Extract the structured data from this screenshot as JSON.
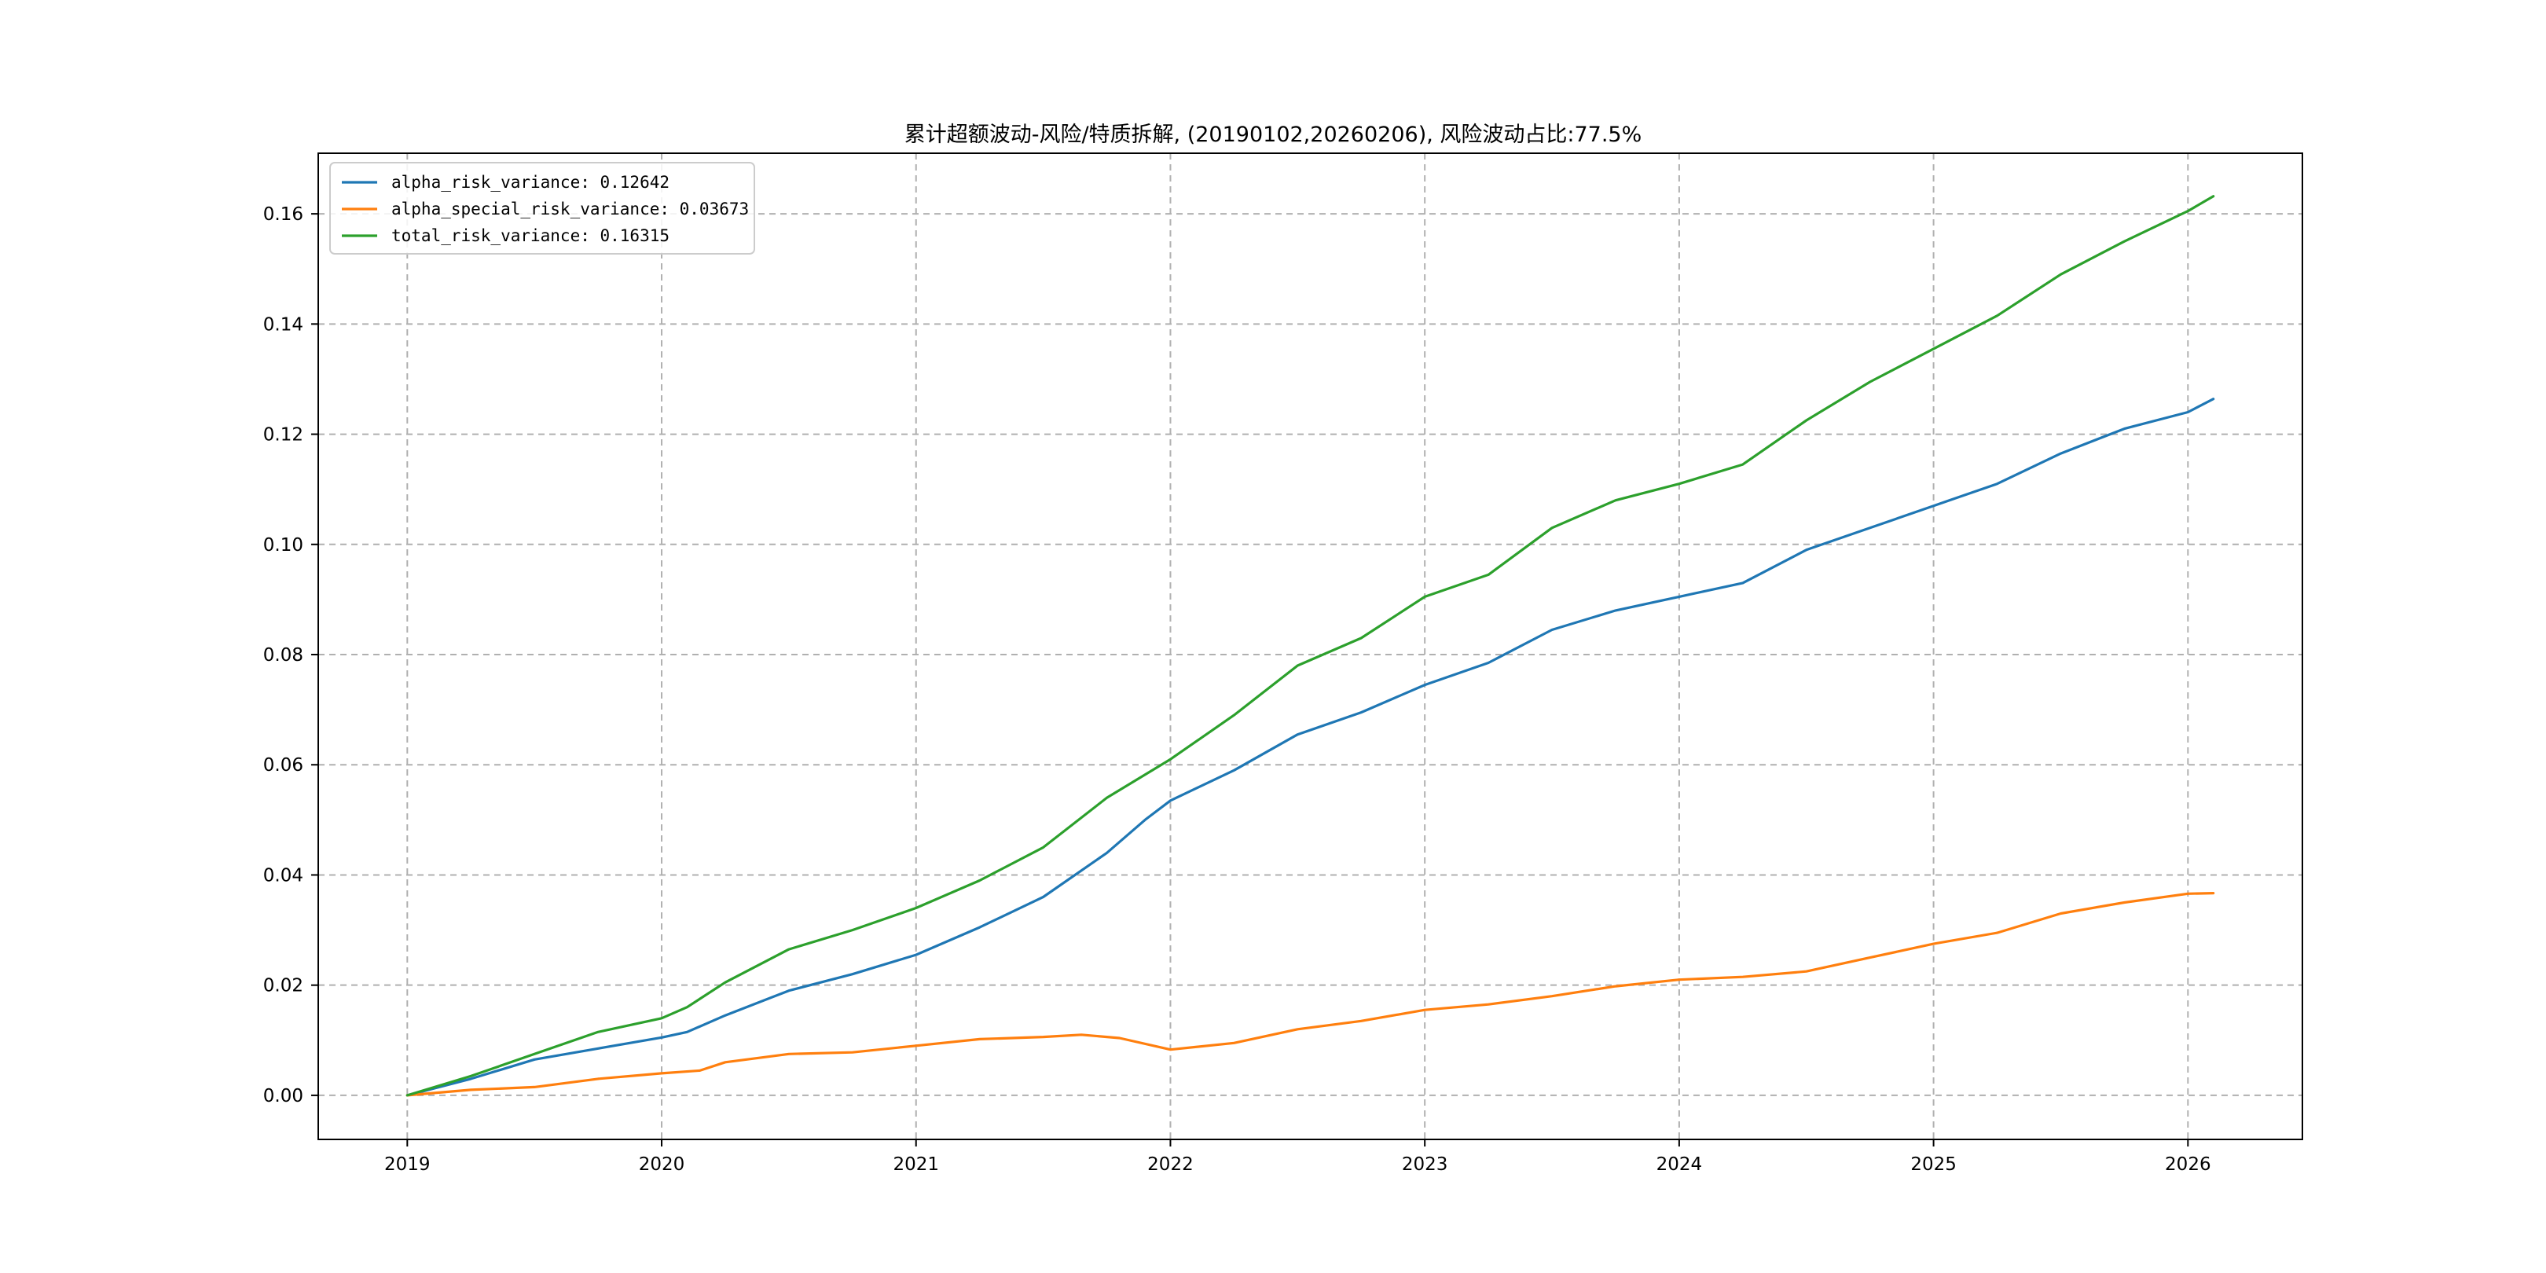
{
  "chart_data": {
    "type": "line",
    "title": "累计超额波动-风险/特质拆解, (20190102,20260206), 风险波动占比:77.5%",
    "xlabel": "",
    "ylabel": "",
    "xlim": [
      2018.65,
      2026.45
    ],
    "ylim": [
      -0.008,
      0.171
    ],
    "xticks": [
      "2019",
      "2020",
      "2021",
      "2022",
      "2023",
      "2024",
      "2025",
      "2026"
    ],
    "xtick_values": [
      2019,
      2020,
      2021,
      2022,
      2023,
      2024,
      2025,
      2026
    ],
    "yticks": [
      "0.00",
      "0.02",
      "0.04",
      "0.06",
      "0.08",
      "0.10",
      "0.12",
      "0.14",
      "0.16"
    ],
    "ytick_values": [
      0.0,
      0.02,
      0.04,
      0.06,
      0.08,
      0.1,
      0.12,
      0.14,
      0.16
    ],
    "grid": true,
    "legend_position": "top-left",
    "series": [
      {
        "name": "alpha_risk_variance: 0.12642",
        "color": "#1f77b4",
        "x": [
          2019.0,
          2019.25,
          2019.5,
          2019.75,
          2020.0,
          2020.1,
          2020.25,
          2020.5,
          2020.75,
          2021.0,
          2021.25,
          2021.5,
          2021.75,
          2021.9,
          2022.0,
          2022.25,
          2022.5,
          2022.75,
          2023.0,
          2023.25,
          2023.5,
          2023.75,
          2024.0,
          2024.25,
          2024.5,
          2024.75,
          2025.0,
          2025.25,
          2025.5,
          2025.75,
          2026.0,
          2026.1
        ],
        "y": [
          0.0,
          0.003,
          0.0065,
          0.0085,
          0.0105,
          0.0115,
          0.0145,
          0.019,
          0.022,
          0.0255,
          0.0305,
          0.036,
          0.044,
          0.05,
          0.0535,
          0.059,
          0.0655,
          0.0695,
          0.0745,
          0.0785,
          0.0845,
          0.088,
          0.0905,
          0.093,
          0.099,
          0.103,
          0.107,
          0.111,
          0.1165,
          0.121,
          0.124,
          0.1264
        ]
      },
      {
        "name": "alpha_special_risk_variance: 0.03673",
        "color": "#ff7f0e",
        "x": [
          2019.0,
          2019.25,
          2019.5,
          2019.75,
          2020.0,
          2020.15,
          2020.25,
          2020.5,
          2020.75,
          2021.0,
          2021.25,
          2021.5,
          2021.65,
          2021.8,
          2022.0,
          2022.25,
          2022.5,
          2022.75,
          2023.0,
          2023.25,
          2023.5,
          2023.75,
          2024.0,
          2024.25,
          2024.5,
          2024.75,
          2025.0,
          2025.25,
          2025.5,
          2025.75,
          2026.0,
          2026.1
        ],
        "y": [
          0.0,
          0.001,
          0.0015,
          0.003,
          0.004,
          0.0045,
          0.006,
          0.0075,
          0.0078,
          0.009,
          0.0102,
          0.0106,
          0.011,
          0.0104,
          0.0083,
          0.0095,
          0.012,
          0.0135,
          0.0155,
          0.0165,
          0.018,
          0.0198,
          0.021,
          0.0215,
          0.0225,
          0.025,
          0.0275,
          0.0295,
          0.033,
          0.035,
          0.0366,
          0.0367
        ]
      },
      {
        "name": "total_risk_variance: 0.16315",
        "color": "#2ca02c",
        "x": [
          2019.0,
          2019.25,
          2019.5,
          2019.75,
          2020.0,
          2020.1,
          2020.25,
          2020.5,
          2020.75,
          2021.0,
          2021.25,
          2021.5,
          2021.75,
          2022.0,
          2022.25,
          2022.5,
          2022.75,
          2023.0,
          2023.25,
          2023.5,
          2023.75,
          2024.0,
          2024.25,
          2024.5,
          2024.75,
          2025.0,
          2025.25,
          2025.5,
          2025.75,
          2026.0,
          2026.1
        ],
        "y": [
          0.0,
          0.0035,
          0.0075,
          0.0115,
          0.014,
          0.016,
          0.0205,
          0.0265,
          0.03,
          0.034,
          0.039,
          0.045,
          0.054,
          0.061,
          0.069,
          0.078,
          0.083,
          0.0905,
          0.0945,
          0.103,
          0.108,
          0.111,
          0.1145,
          0.1225,
          0.1295,
          0.1355,
          0.1415,
          0.149,
          0.155,
          0.1605,
          0.1632
        ]
      }
    ]
  }
}
